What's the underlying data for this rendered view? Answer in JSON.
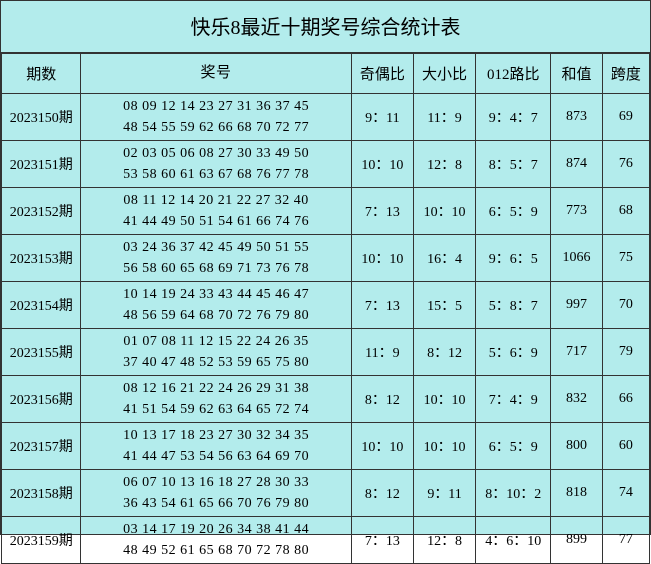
{
  "title": "快乐8最近十期奖号综合统计表",
  "columns": [
    "期数",
    "奖号",
    "奇偶比",
    "大小比",
    "012路比",
    "和值",
    "跨度"
  ],
  "rows": [
    {
      "period": "2023150期",
      "numbers_line1": "08 09 12 14 23 27 31 36 37 45",
      "numbers_line2": "48 54 55 59 62 66 68 70 72 77",
      "odd_even": "9：11",
      "big_small": "11：9",
      "route012": "9：4：7",
      "sum": "873",
      "span": "69"
    },
    {
      "period": "2023151期",
      "numbers_line1": "02 03 05 06 08 27 30 33 49 50",
      "numbers_line2": "53 58 60 61 63 67 68 76 77 78",
      "odd_even": "10：10",
      "big_small": "12：8",
      "route012": "8：5：7",
      "sum": "874",
      "span": "76"
    },
    {
      "period": "2023152期",
      "numbers_line1": "08 11 12 14 20 21 22 27 32 40",
      "numbers_line2": "41 44 49 50 51 54 61 66 74 76",
      "odd_even": "7：13",
      "big_small": "10：10",
      "route012": "6：5：9",
      "sum": "773",
      "span": "68"
    },
    {
      "period": "2023153期",
      "numbers_line1": "03 24 36 37 42 45 49 50 51 55",
      "numbers_line2": "56 58 60 65 68 69 71 73 76 78",
      "odd_even": "10：10",
      "big_small": "16：4",
      "route012": "9：6：5",
      "sum": "1066",
      "span": "75"
    },
    {
      "period": "2023154期",
      "numbers_line1": "10 14 19 24 33 43 44 45 46 47",
      "numbers_line2": "48 56 59 64 68 70 72 76 79 80",
      "odd_even": "7：13",
      "big_small": "15：5",
      "route012": "5：8：7",
      "sum": "997",
      "span": "70"
    },
    {
      "period": "2023155期",
      "numbers_line1": "01 07 08 11 12 15 22 24 26 35",
      "numbers_line2": "37 40 47 48 52 53 59 65 75 80",
      "odd_even": "11：9",
      "big_small": "8：12",
      "route012": "5：6：9",
      "sum": "717",
      "span": "79"
    },
    {
      "period": "2023156期",
      "numbers_line1": "08 12 16 21 22 24 26 29 31 38",
      "numbers_line2": "41 51 54 59 62 63 64 65 72 74",
      "odd_even": "8：12",
      "big_small": "10：10",
      "route012": "7：4：9",
      "sum": "832",
      "span": "66"
    },
    {
      "period": "2023157期",
      "numbers_line1": "10 13 17 18 23 27 30 32 34 35",
      "numbers_line2": "41 44 47 53 54 56 63 64 69 70",
      "odd_even": "10：10",
      "big_small": "10：10",
      "route012": "6：5：9",
      "sum": "800",
      "span": "60"
    },
    {
      "period": "2023158期",
      "numbers_line1": "06 07 10 13 16 18 27 28 30 33",
      "numbers_line2": "36 43 54 61 65 66 70 76 79 80",
      "odd_even": "8：12",
      "big_small": "9：11",
      "route012": "8：10：2",
      "sum": "818",
      "span": "74"
    },
    {
      "period": "2023159期",
      "numbers_line1": "03 14 17 19 20 26 34 38 41 44",
      "numbers_line2": "48 49 52 61 65 68 70 72 78 80",
      "odd_even": "7：13",
      "big_small": "12：8",
      "route012": "4：6：10",
      "sum": "899",
      "span": "77"
    }
  ],
  "colors": {
    "background": "#b3ecec",
    "border": "#333333",
    "text": "#000000"
  },
  "font": {
    "title_size": 20,
    "header_size": 15,
    "cell_size": 14
  }
}
